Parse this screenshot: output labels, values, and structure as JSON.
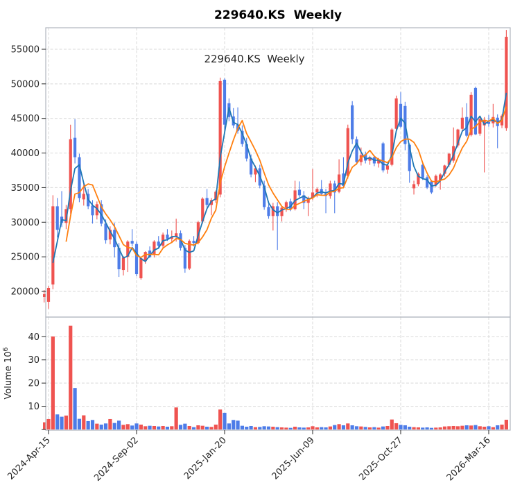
{
  "chart_data": {
    "type": "candlestick+volume",
    "title": "229640.KS  Weekly",
    "inner_title": "229640.KS  Weekly",
    "frequency": "weekly",
    "start_date": "2024-04-08",
    "price_axis": {
      "ticks": [
        20000,
        25000,
        30000,
        35000,
        40000,
        45000,
        50000,
        55000
      ]
    },
    "volume_axis": {
      "ticks": [
        10,
        20,
        30,
        40
      ],
      "label": "Volume",
      "unit_base": "10",
      "unit_exp": "6"
    },
    "x_ticks": [
      {
        "index": 1,
        "label": "2024-Apr-15"
      },
      {
        "index": 21,
        "label": "2024-Sep-02"
      },
      {
        "index": 41,
        "label": "2025-Jan-20"
      },
      {
        "index": 61,
        "label": "2025-Jun-09"
      },
      {
        "index": 81,
        "label": "2025-Oct-27"
      },
      {
        "index": 101,
        "label": "2026-Mar-16"
      }
    ],
    "moving_averages": {
      "windows": [
        3,
        6
      ],
      "colors": [
        "#1f77b4",
        "#ff7f0e"
      ]
    },
    "colors": {
      "up": "#ef5350",
      "down": "#4d7ce8",
      "grid": "#d9d9d9",
      "spine": "#b0b6bf",
      "text": "#262626"
    },
    "ohlcv_millions": [
      [
        19200,
        20200,
        18400,
        19600,
        3.1
      ],
      [
        18500,
        20800,
        17500,
        20500,
        4.5
      ],
      [
        21000,
        33900,
        20300,
        32300,
        40.1
      ],
      [
        32300,
        33500,
        27800,
        28900,
        6.5
      ],
      [
        30800,
        34500,
        29300,
        29900,
        5.5
      ],
      [
        29900,
        32500,
        29000,
        31900,
        6.0
      ],
      [
        31900,
        44100,
        31200,
        42000,
        44.7
      ],
      [
        42200,
        44900,
        38500,
        39400,
        17.9
      ],
      [
        39400,
        39900,
        32900,
        33500,
        4.6
      ],
      [
        33300,
        35600,
        32400,
        34100,
        6.1
      ],
      [
        34100,
        34800,
        31900,
        32300,
        3.6
      ],
      [
        32400,
        33200,
        29800,
        31000,
        4.1
      ],
      [
        31000,
        33000,
        30400,
        32600,
        2.5
      ],
      [
        32600,
        33200,
        29400,
        29800,
        2.1
      ],
      [
        29800,
        30400,
        26900,
        27400,
        2.6
      ],
      [
        27500,
        29400,
        26800,
        28900,
        4.5
      ],
      [
        28900,
        29900,
        24900,
        26400,
        2.8
      ],
      [
        26300,
        27000,
        22100,
        23200,
        3.8
      ],
      [
        23100,
        25100,
        22300,
        24900,
        2.0
      ],
      [
        25000,
        27400,
        22800,
        27200,
        2.3
      ],
      [
        27300,
        29000,
        26500,
        26900,
        1.7
      ],
      [
        26850,
        27200,
        22200,
        22500,
        2.6
      ],
      [
        21900,
        25000,
        21700,
        24800,
        2.1
      ],
      [
        24400,
        25800,
        24000,
        25700,
        1.4
      ],
      [
        25900,
        26500,
        24800,
        25000,
        1.6
      ],
      [
        25300,
        27400,
        24900,
        27200,
        1.5
      ],
      [
        27200,
        28000,
        26300,
        26600,
        1.3
      ],
      [
        26600,
        28500,
        26200,
        28200,
        1.5
      ],
      [
        28200,
        29000,
        27300,
        27600,
        1.2
      ],
      [
        27600,
        28800,
        27000,
        27900,
        1.4
      ],
      [
        27900,
        30500,
        27200,
        28400,
        9.5
      ],
      [
        28400,
        28800,
        25900,
        26300,
        2.0
      ],
      [
        26300,
        26700,
        22700,
        23300,
        2.5
      ],
      [
        23300,
        27500,
        23100,
        27300,
        1.5
      ],
      [
        27300,
        28000,
        26500,
        27000,
        1.0
      ],
      [
        27000,
        30200,
        26800,
        30000,
        1.8
      ],
      [
        30100,
        33600,
        29800,
        33400,
        1.6
      ],
      [
        33500,
        34800,
        32100,
        32500,
        1.2
      ],
      [
        32500,
        33500,
        31000,
        33200,
        1.1
      ],
      [
        33200,
        34600,
        32800,
        34400,
        2.1
      ],
      [
        34000,
        50900,
        33600,
        50400,
        8.6
      ],
      [
        50600,
        50800,
        43000,
        44100,
        7.2
      ],
      [
        47200,
        47900,
        44600,
        45200,
        2.6
      ],
      [
        45300,
        46500,
        43600,
        44000,
        4.1
      ],
      [
        44100,
        46600,
        42800,
        43200,
        3.8
      ],
      [
        43200,
        44000,
        40900,
        41300,
        1.6
      ],
      [
        41300,
        42200,
        38800,
        39200,
        1.2
      ],
      [
        39200,
        39800,
        36500,
        36900,
        1.5
      ],
      [
        36900,
        38200,
        35800,
        37800,
        1.0
      ],
      [
        37800,
        38300,
        34900,
        35300,
        1.1
      ],
      [
        35300,
        36000,
        31800,
        32200,
        1.4
      ],
      [
        32200,
        33000,
        30500,
        30900,
        1.3
      ],
      [
        30900,
        32800,
        28800,
        32300,
        1.2
      ],
      [
        32300,
        32900,
        26000,
        30900,
        1.0
      ],
      [
        30900,
        32300,
        30100,
        32100,
        0.9
      ],
      [
        32100,
        33100,
        31500,
        32900,
        0.8
      ],
      [
        33000,
        33400,
        31600,
        31900,
        0.7
      ],
      [
        31900,
        36000,
        31700,
        34600,
        1.2
      ],
      [
        34700,
        35900,
        33600,
        33900,
        0.9
      ],
      [
        33900,
        34500,
        31900,
        32800,
        0.8
      ],
      [
        32800,
        33700,
        30900,
        33500,
        0.9
      ],
      [
        33500,
        37700,
        33200,
        34300,
        1.4
      ],
      [
        34300,
        35000,
        33600,
        34800,
        0.9
      ],
      [
        34800,
        36100,
        33900,
        34100,
        1.0
      ],
      [
        34100,
        34800,
        31300,
        33800,
        0.9
      ],
      [
        33800,
        36000,
        33400,
        35600,
        1.3
      ],
      [
        35600,
        36000,
        31300,
        34300,
        1.9
      ],
      [
        34400,
        39100,
        34200,
        36900,
        2.3
      ],
      [
        37050,
        39400,
        34900,
        35250,
        1.8
      ],
      [
        36700,
        44100,
        36300,
        43600,
        2.6
      ],
      [
        46900,
        47500,
        41300,
        42000,
        1.8
      ],
      [
        42000,
        42400,
        38300,
        38700,
        1.4
      ],
      [
        38700,
        40800,
        38200,
        39700,
        1.3
      ],
      [
        39800,
        40200,
        38500,
        38900,
        1.1
      ],
      [
        38900,
        39600,
        38300,
        39400,
        0.9
      ],
      [
        39400,
        39700,
        38100,
        38500,
        1.0
      ],
      [
        38500,
        39300,
        37900,
        39100,
        0.8
      ],
      [
        41400,
        41600,
        37200,
        37500,
        1.3
      ],
      [
        37600,
        38400,
        37000,
        38200,
        1.5
      ],
      [
        38300,
        43600,
        38100,
        43400,
        4.3
      ],
      [
        43500,
        48300,
        43200,
        47900,
        2.7
      ],
      [
        47100,
        48800,
        43600,
        43800,
        2.0
      ],
      [
        46800,
        47400,
        40400,
        41300,
        1.8
      ],
      [
        41200,
        41400,
        35700,
        37400,
        1.2
      ],
      [
        34900,
        36000,
        34000,
        35500,
        1.0
      ],
      [
        35500,
        37200,
        35200,
        37000,
        0.9
      ],
      [
        38300,
        38600,
        36100,
        36400,
        0.8
      ],
      [
        36500,
        36800,
        34800,
        35000,
        0.9
      ],
      [
        35900,
        36100,
        34100,
        34300,
        0.7
      ],
      [
        35400,
        36900,
        35100,
        36700,
        0.8
      ],
      [
        36000,
        37100,
        34700,
        36900,
        0.9
      ],
      [
        37000,
        38300,
        36600,
        38200,
        1.3
      ],
      [
        38300,
        40000,
        38000,
        39900,
        1.4
      ],
      [
        38900,
        43700,
        38600,
        41000,
        1.5
      ],
      [
        41100,
        43500,
        40800,
        43400,
        1.4
      ],
      [
        43500,
        46600,
        43100,
        45100,
        1.6
      ],
      [
        45200,
        47200,
        42300,
        42500,
        1.8
      ],
      [
        42600,
        48800,
        42400,
        48400,
        1.7
      ],
      [
        49400,
        49600,
        42600,
        42700,
        1.9
      ],
      [
        42800,
        45200,
        42500,
        44900,
        1.4
      ],
      [
        44000,
        45200,
        37200,
        44800,
        1.2
      ],
      [
        44500,
        45500,
        43800,
        44200,
        1.4
      ],
      [
        44300,
        47100,
        43700,
        45200,
        1.0
      ],
      [
        45100,
        45600,
        40700,
        43900,
        1.8
      ],
      [
        44000,
        45600,
        43600,
        45400,
        2.1
      ],
      [
        43600,
        57800,
        43200,
        56800,
        4.2
      ]
    ]
  }
}
